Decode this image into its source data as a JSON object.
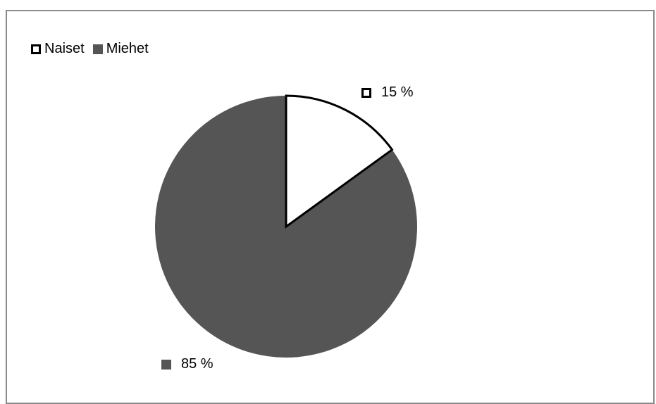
{
  "chart_data": {
    "type": "pie",
    "categories": [
      "Naiset",
      "Miehet"
    ],
    "values": [
      15,
      85
    ],
    "value_labels": [
      "15 %",
      "85 %"
    ],
    "legend_position": "top-left",
    "colors": {
      "Naiset": "#ffffff",
      "Miehet": "#555555"
    },
    "slice_outline": "#000000"
  }
}
